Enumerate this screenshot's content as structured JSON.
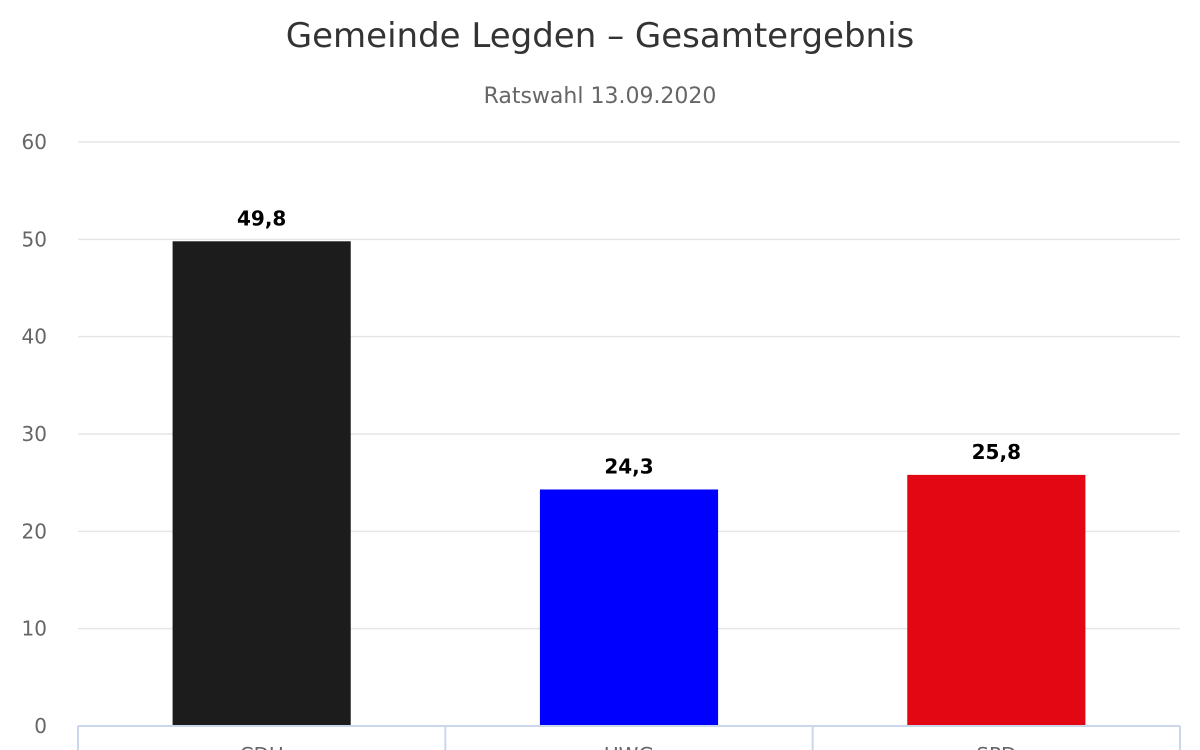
{
  "chart_data": {
    "type": "bar",
    "title": "Gemeinde Legden – Gesamtergebnis",
    "subtitle": "Ratswahl 13.09.2020",
    "categories": [
      "CDU",
      "UWG",
      "SPD"
    ],
    "values": [
      49.8,
      24.3,
      25.8
    ],
    "value_labels": [
      "49,8",
      "24,3",
      "25,8"
    ],
    "colors": [
      "#1c1c1c",
      "#0000ff",
      "#e30613"
    ],
    "ylim": [
      0,
      60
    ],
    "yticks": [
      0,
      10,
      20,
      30,
      40,
      50,
      60
    ],
    "grid": true,
    "legend": "none"
  }
}
